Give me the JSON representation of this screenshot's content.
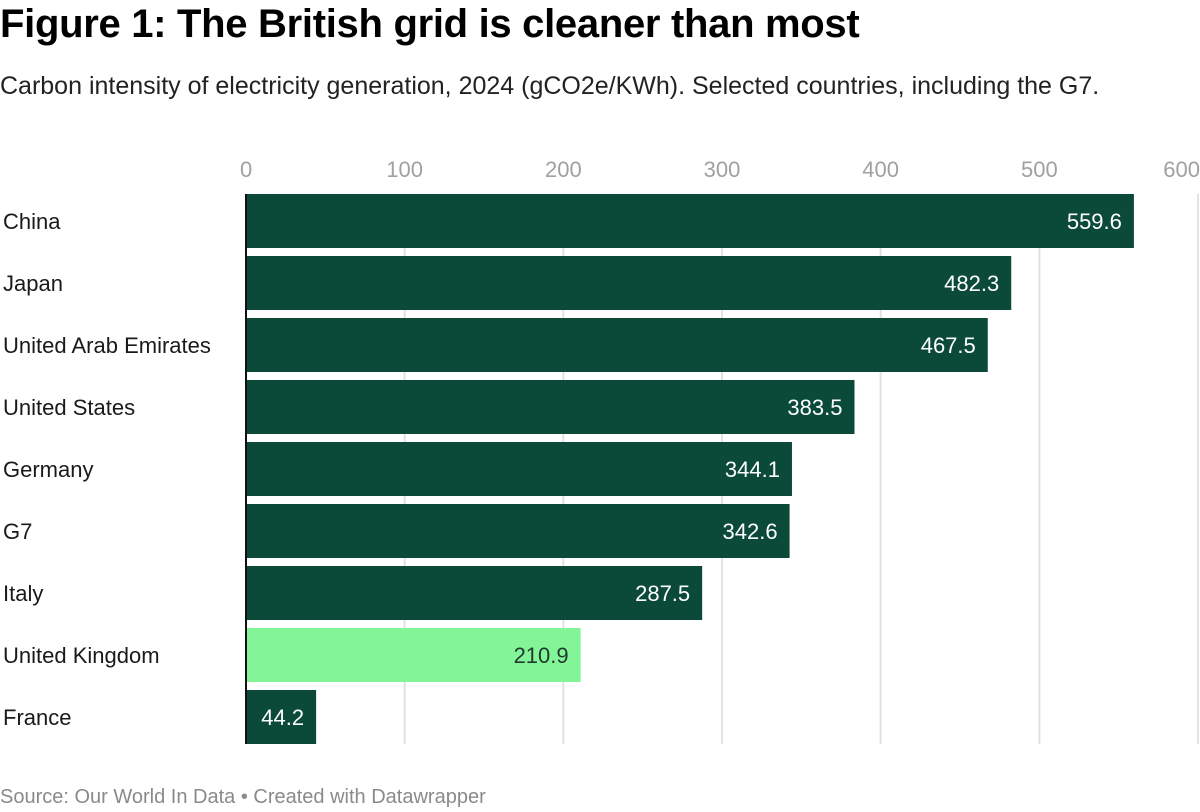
{
  "header": {
    "title": "Figure 1: The British grid is cleaner than most",
    "subtitle": "Carbon intensity of electricity generation, 2024 (gCO2e/KWh). Selected countries, including the G7."
  },
  "footer": {
    "text": "Source: Our World In Data • Created with Datawrapper"
  },
  "colors": {
    "default_bar": "#0b4a38",
    "highlight_bar": "#83f598",
    "gridline": "#e2e2e2",
    "label_on_dark": "#ffffff",
    "label_on_light": "#1f3a2d"
  },
  "chart_data": {
    "type": "bar",
    "orientation": "horizontal",
    "title": "Figure 1: The British grid is cleaner than most",
    "subtitle": "Carbon intensity of electricity generation, 2024 (gCO2e/KWh). Selected countries, including the G7.",
    "xlabel": "",
    "ylabel": "",
    "categories": [
      "China",
      "Japan",
      "United Arab Emirates",
      "United States",
      "Germany",
      "G7",
      "Italy",
      "United Kingdom",
      "France"
    ],
    "values": [
      559.6,
      482.3,
      467.5,
      383.5,
      344.1,
      342.6,
      287.5,
      210.9,
      44.2
    ],
    "value_labels": [
      "559.6",
      "482.3",
      "467.5",
      "383.5",
      "344.1",
      "342.6",
      "287.5",
      "210.9",
      "44.2"
    ],
    "highlighted": [
      "United Kingdom"
    ],
    "xlim": [
      0,
      600
    ],
    "xticks": [
      0,
      100,
      200,
      300,
      400,
      500,
      600
    ],
    "xtick_labels": [
      "0",
      "100",
      "200",
      "300",
      "400",
      "500",
      "600"
    ],
    "axis_position": "top",
    "grid": true,
    "legend": "none",
    "source": "Source: Our World In Data • Created with Datawrapper"
  }
}
